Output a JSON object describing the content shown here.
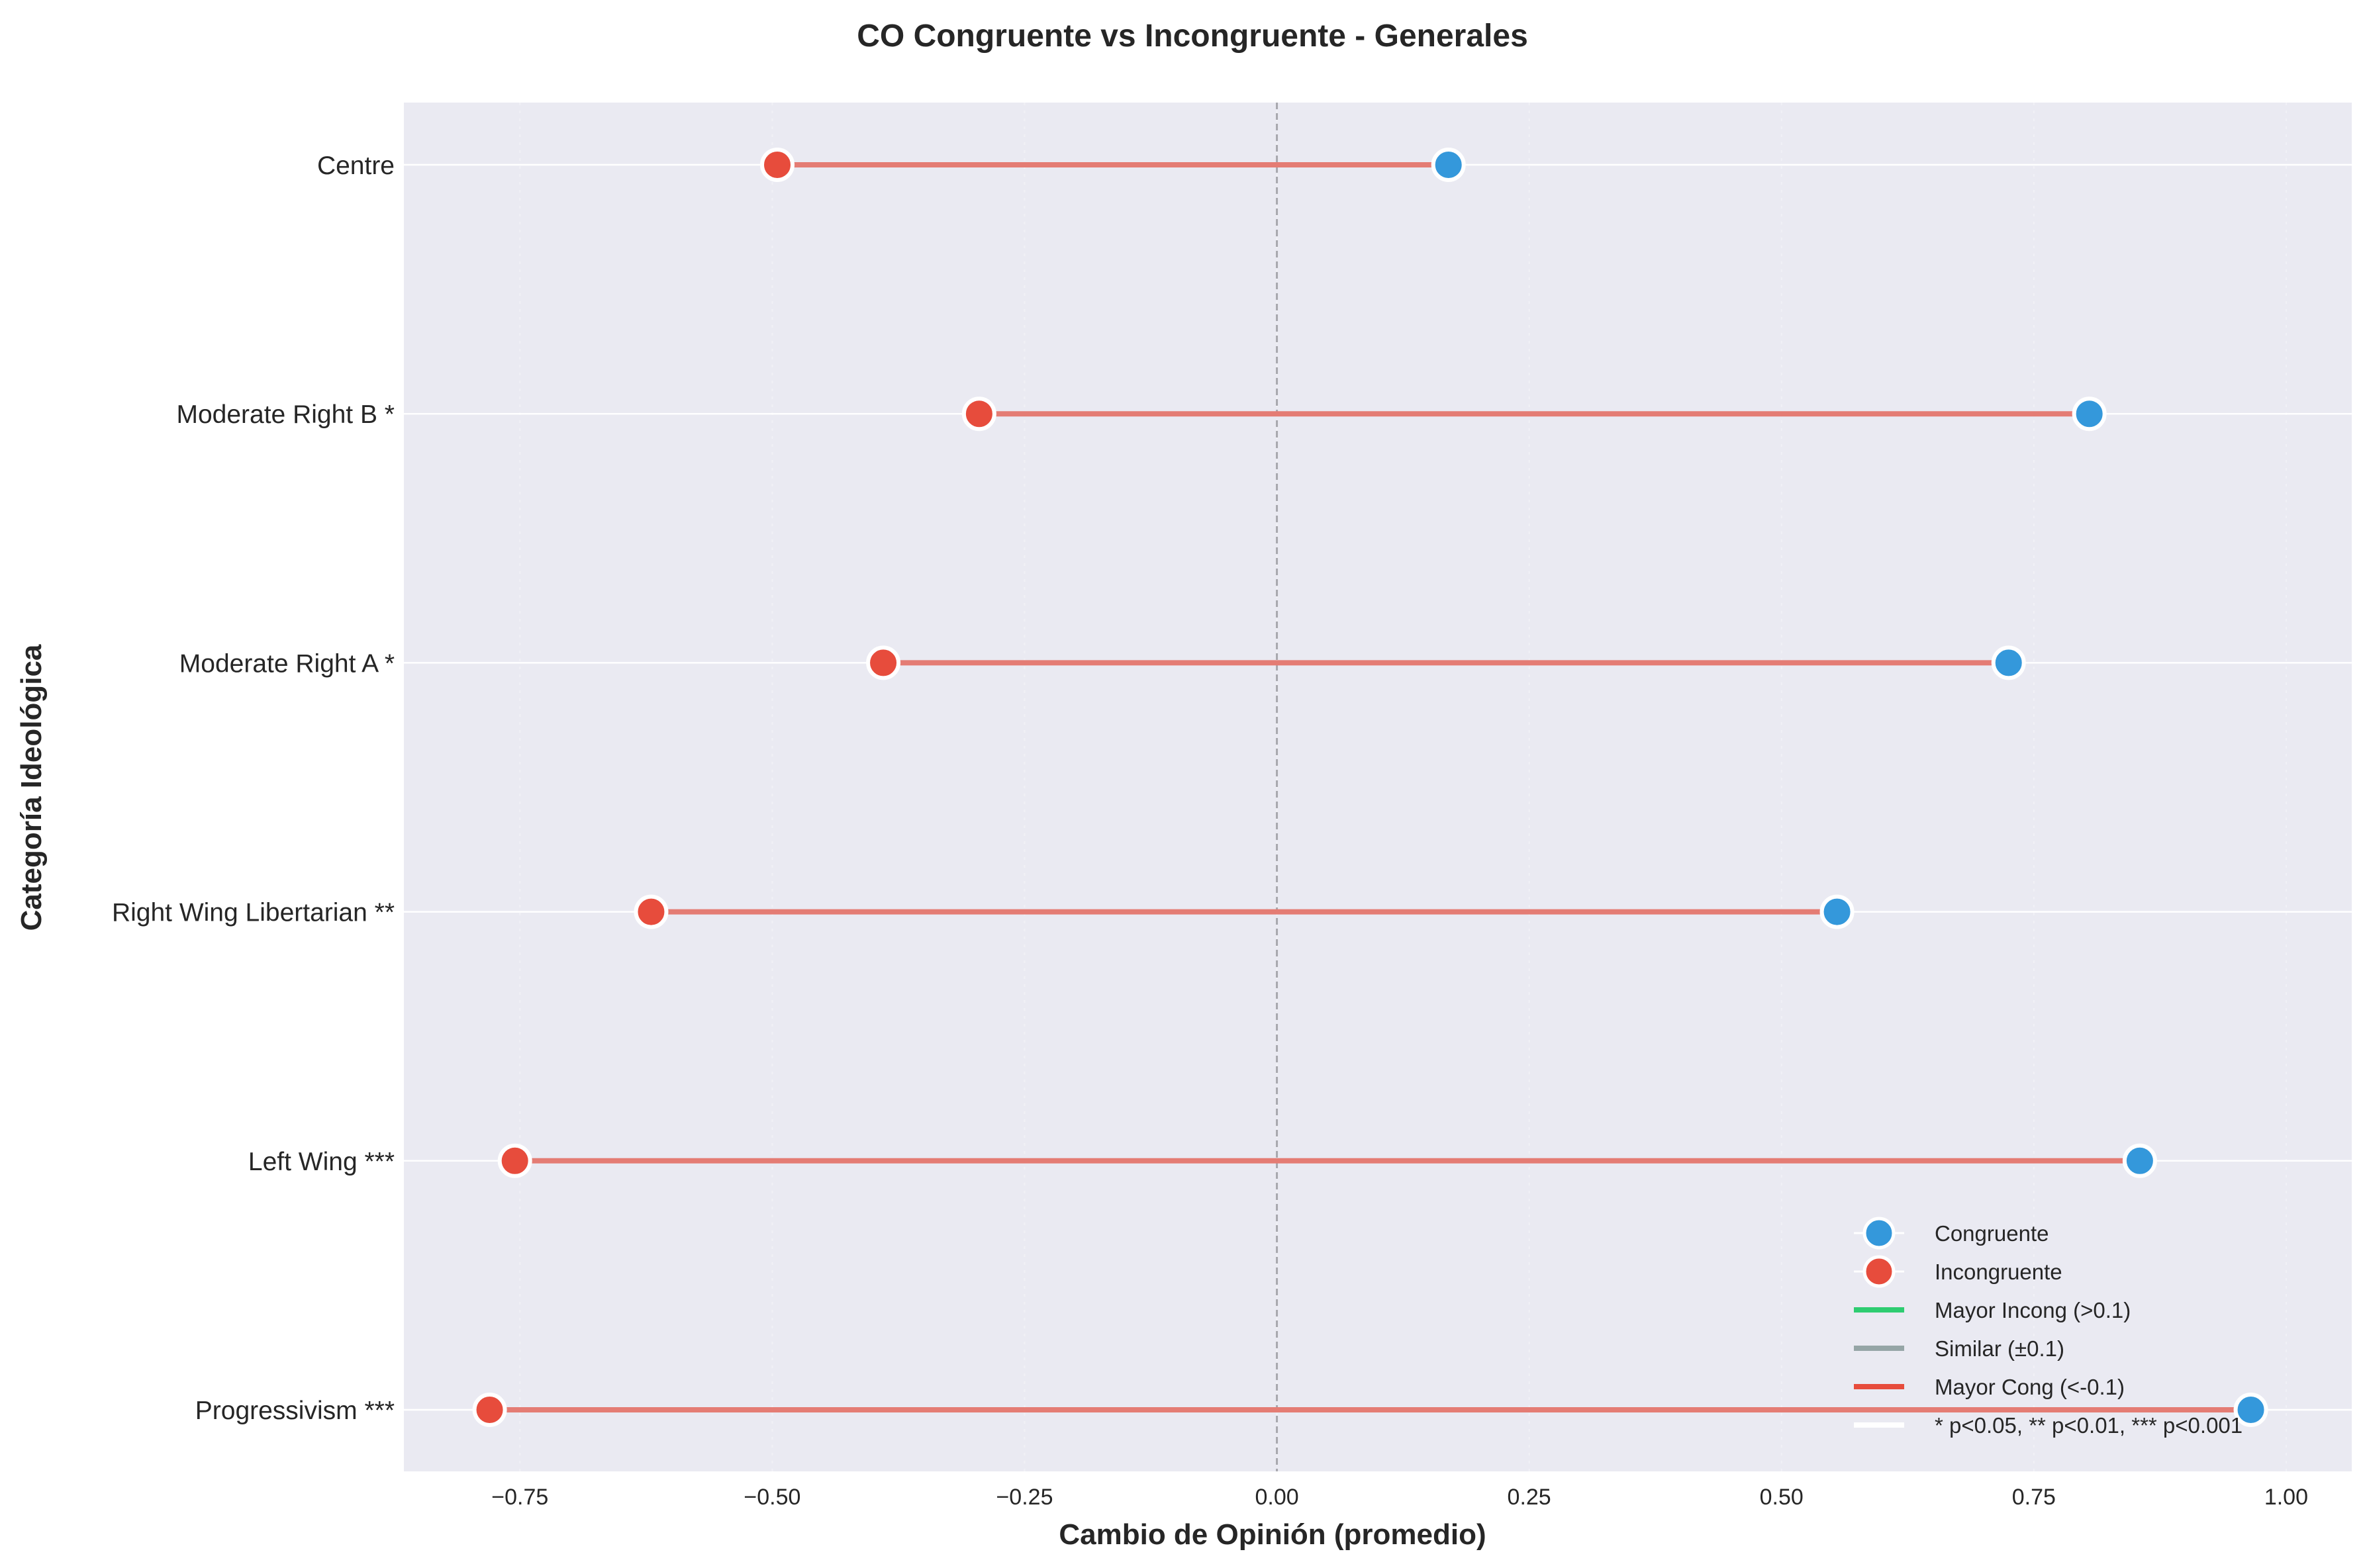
{
  "chart_data": {
    "type": "dumbbell",
    "title": "CO Congruente vs Incongruente - Generales",
    "xlabel": "Cambio de Opinión (promedio)",
    "ylabel": "Categoría Ideológica",
    "xlim": [
      -0.865,
      1.065
    ],
    "xticks": [
      -0.75,
      -0.5,
      -0.25,
      0.0,
      0.25,
      0.5,
      0.75,
      1.0
    ],
    "xtick_labels": [
      "−0.75",
      "−0.50",
      "−0.25",
      "0.00",
      "0.25",
      "0.50",
      "0.75",
      "1.00"
    ],
    "reference_line": 0.0,
    "grid": true,
    "legend_position": "lower-right",
    "categories": [
      "Centre",
      "Moderate Right B *",
      "Moderate Right A *",
      "Right Wing Libertarian **",
      "Left Wing ***",
      "Progressivism ***"
    ],
    "series": [
      {
        "name": "Congruente",
        "color": "#3498db",
        "values": [
          0.17,
          0.805,
          0.725,
          0.555,
          0.855,
          0.965
        ]
      },
      {
        "name": "Incongruente",
        "color": "#e74c3c",
        "values": [
          -0.495,
          -0.295,
          -0.39,
          -0.62,
          -0.755,
          -0.78
        ]
      }
    ],
    "difference_lines": [
      {
        "name": "Mayor Incong (>0.1)",
        "color": "#2ecc71"
      },
      {
        "name": "Similar (±0.1)",
        "color": "#95a5a6"
      },
      {
        "name": "Mayor Cong (<-0.1)",
        "color": "#e74c3c"
      }
    ],
    "significance_note": "* p<0.05, ** p<0.01, *** p<0.001",
    "styles": {
      "plot_background": "#eaeaf2",
      "grid_color": "#ffffff",
      "connector_color": "#e47c74",
      "reference_line_color": "#a7a7ad"
    }
  }
}
